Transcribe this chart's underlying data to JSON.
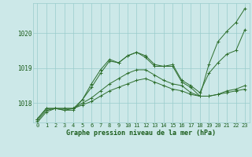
{
  "xlabel": "Graphe pression niveau de la mer (hPa)",
  "x_values": [
    0,
    1,
    2,
    3,
    4,
    5,
    6,
    7,
    8,
    9,
    10,
    11,
    12,
    13,
    14,
    15,
    16,
    17,
    18,
    19,
    20,
    21,
    22,
    23
  ],
  "series": [
    [
      1017.55,
      1017.85,
      1017.85,
      1017.85,
      1017.85,
      1017.95,
      1018.05,
      1018.2,
      1018.35,
      1018.45,
      1018.55,
      1018.65,
      1018.7,
      1018.6,
      1018.5,
      1018.4,
      1018.35,
      1018.25,
      1018.2,
      1018.2,
      1018.25,
      1018.3,
      1018.35,
      1018.4
    ],
    [
      1017.55,
      1017.85,
      1017.85,
      1017.85,
      1017.85,
      1018.0,
      1018.15,
      1018.35,
      1018.55,
      1018.7,
      1018.85,
      1018.95,
      1018.95,
      1018.8,
      1018.65,
      1018.55,
      1018.5,
      1018.3,
      1018.2,
      1018.2,
      1018.25,
      1018.35,
      1018.4,
      1018.5
    ],
    [
      1017.5,
      1017.8,
      1017.85,
      1017.8,
      1017.85,
      1018.1,
      1018.45,
      1018.85,
      1019.2,
      1019.15,
      1019.35,
      1019.45,
      1019.35,
      1019.1,
      1019.05,
      1019.1,
      1018.65,
      1018.5,
      1018.3,
      1018.85,
      1019.15,
      1019.4,
      1019.5,
      1020.1
    ],
    [
      1017.45,
      1017.75,
      1017.85,
      1017.8,
      1017.8,
      1018.1,
      1018.55,
      1018.95,
      1019.25,
      1019.15,
      1019.35,
      1019.45,
      1019.3,
      1019.05,
      1019.05,
      1019.05,
      1018.6,
      1018.45,
      1018.2,
      1019.1,
      1019.75,
      1020.05,
      1020.3,
      1020.7
    ]
  ],
  "line_colors": [
    "#2d6e2d",
    "#2d6e2d",
    "#2d6e2d",
    "#2d6e2d"
  ],
  "marker": "+",
  "bg_color": "#cce8e8",
  "grid_color": "#99cccc",
  "text_color": "#1a5c1a",
  "ylim_min": 1017.45,
  "ylim_max": 1020.85,
  "yticks": [
    1018,
    1019,
    1020
  ],
  "xtick_fontsize": 5.0,
  "ytick_fontsize": 5.5,
  "xlabel_fontsize": 6.0
}
